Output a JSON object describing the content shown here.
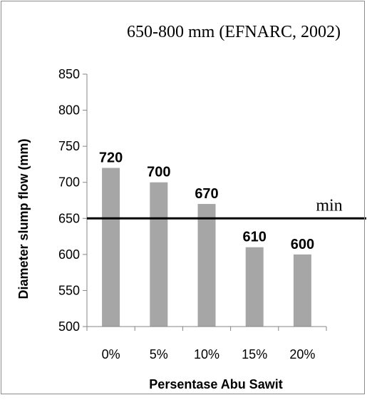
{
  "chart_data": {
    "type": "bar",
    "categories": [
      "0%",
      "5%",
      "10%",
      "15%",
      "20%"
    ],
    "values": [
      720,
      700,
      670,
      610,
      600
    ],
    "data_labels": [
      "720",
      "700",
      "670",
      "610",
      "600"
    ],
    "xlabel": "Persentase Abu Sawit",
    "ylabel": "Diameter slump flow (mm)",
    "ylim": [
      500,
      850
    ],
    "yticks": [
      500,
      550,
      600,
      650,
      700,
      750,
      800,
      850
    ],
    "grid": false,
    "legend": "none",
    "bar_color": "#a6a6a6",
    "annotations": {
      "range_text": "650-800 mm (EFNARC, 2002)",
      "reference_line": {
        "value": 650,
        "label": "min",
        "color": "#000000"
      }
    }
  }
}
